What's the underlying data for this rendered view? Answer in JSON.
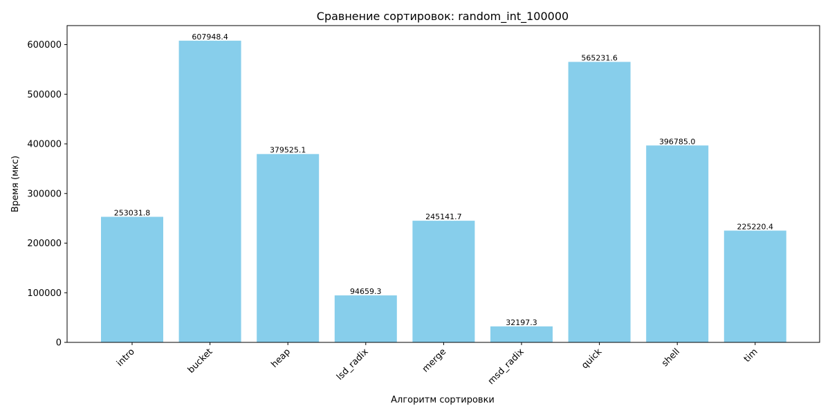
{
  "chart_data": {
    "type": "bar",
    "title": "Сравнение сортировок: random_int_100000",
    "xlabel": "Алгоритм сортировки",
    "ylabel": "Время (мкс)",
    "categories": [
      "intro",
      "bucket",
      "heap",
      "lsd_radix",
      "merge",
      "msd_radix",
      "quick",
      "shell",
      "tim"
    ],
    "values": [
      253031.8,
      607948.4,
      379525.1,
      94659.3,
      245141.7,
      32197.3,
      565231.6,
      396785.0,
      225220.4
    ],
    "value_labels": [
      "253031.8",
      "607948.4",
      "379525.1",
      "94659.3",
      "245141.7",
      "32197.3",
      "565231.6",
      "396785.0",
      "225220.4"
    ],
    "ylim": [
      0,
      638345.82
    ],
    "yticks": [
      0,
      100000,
      200000,
      300000,
      400000,
      500000,
      600000
    ],
    "ytick_labels": [
      "0",
      "100000",
      "200000",
      "300000",
      "400000",
      "500000",
      "600000"
    ],
    "bar_color": "#87ceeb",
    "grid": false,
    "legend": "none"
  }
}
